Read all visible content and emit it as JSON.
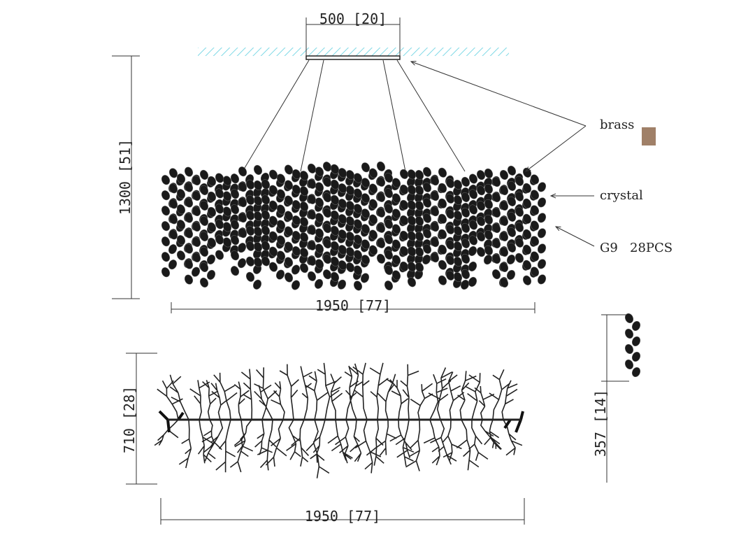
{
  "dimensions": {
    "canopy_width": "500 [20]",
    "overall_height": "1300 [51]",
    "front_width": "1950 [77]",
    "top_depth": "710 [28]",
    "top_width": "1950 [77]",
    "strand_height": "357 [14]"
  },
  "callouts": {
    "brass": "brass",
    "crystal": "crystal",
    "bulbs": "G9   28PCS"
  }
}
